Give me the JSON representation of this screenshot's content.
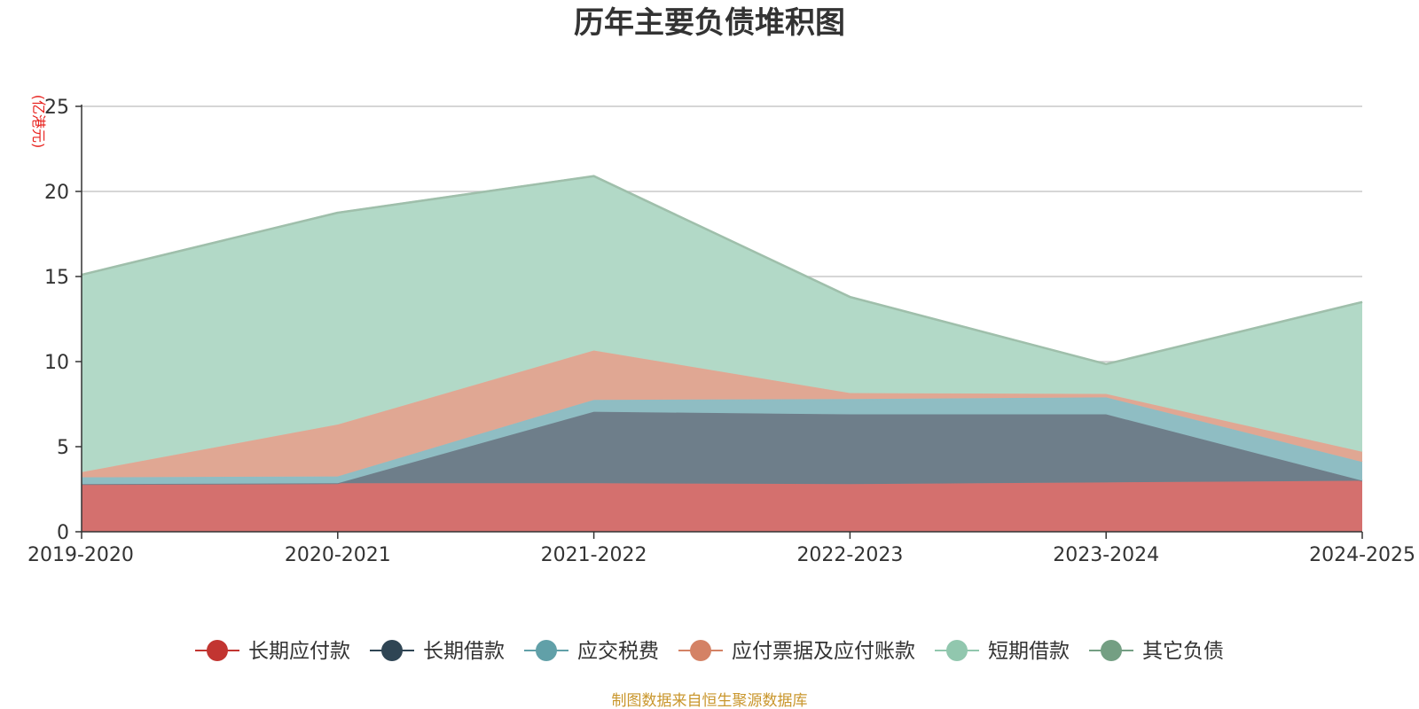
{
  "chart_data": {
    "type": "area",
    "stacked": true,
    "title": "历年主要负债堆积图",
    "unit_label": "(亿港元)",
    "categories": [
      "2019-2020",
      "2020-2021",
      "2021-2022",
      "2022-2023",
      "2023-2024",
      "2024-2025"
    ],
    "y_ticks": [
      "0",
      "5",
      "10",
      "15",
      "20",
      "25"
    ],
    "ylim": [
      0,
      25
    ],
    "grid": true,
    "legend_position": "bottom",
    "series": [
      {
        "name": "长期应付款",
        "values": [
          2.8,
          2.85,
          2.85,
          2.8,
          2.9,
          3.0
        ],
        "color": "#c23531",
        "fill": "#d4706e"
      },
      {
        "name": "长期借款",
        "values": [
          0.0,
          0.0,
          4.2,
          4.1,
          4.0,
          0.0
        ],
        "color": "#2f4554",
        "fill": "#6e7e8a"
      },
      {
        "name": "应交税费",
        "values": [
          0.4,
          0.4,
          0.7,
          0.9,
          1.0,
          1.1
        ],
        "color": "#61a0a8",
        "fill": "#8fbdc3"
      },
      {
        "name": "应付票据及应付账款",
        "values": [
          0.3,
          3.05,
          2.9,
          0.35,
          0.2,
          0.6
        ],
        "color": "#d48265",
        "fill": "#e0a793"
      },
      {
        "name": "短期借款",
        "values": [
          11.6,
          12.45,
          10.25,
          5.65,
          1.75,
          8.8
        ],
        "color": "#91c7ae",
        "fill": "#b2d9c7"
      },
      {
        "name": "其它负债",
        "values": [
          0.0,
          0.0,
          0.0,
          0.0,
          0.0,
          0.0
        ],
        "color": "#749f83",
        "fill": "#9fbfab"
      }
    ],
    "source": "制图数据来自恒生聚源数据库"
  }
}
